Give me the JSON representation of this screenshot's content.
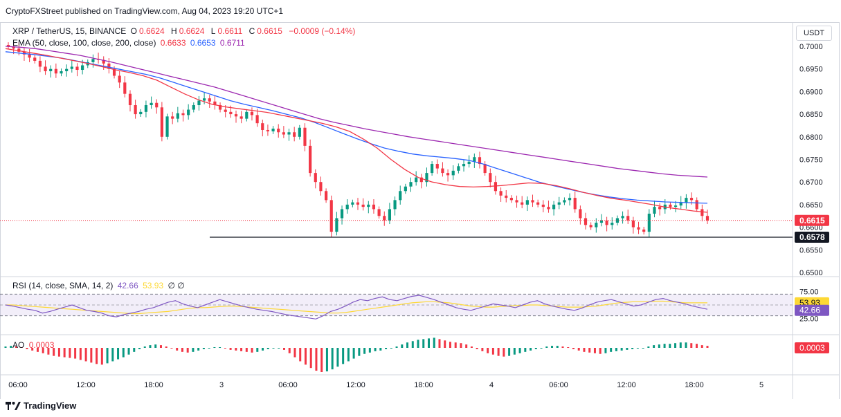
{
  "header": {
    "published": "CryptoFXStreet published on TradingView.com, Aug 04, 2023 19:20 UTC+1"
  },
  "legend": {
    "symbol": "XRP / TetherUS, 15, BINANCE",
    "o_label": "O",
    "o_val": "0.6624",
    "h_label": "H",
    "h_val": "0.6624",
    "l_label": "L",
    "l_val": "0.6611",
    "c_label": "C",
    "c_val": "0.6615",
    "change": "−0.0009 (−0.14%)",
    "ema_label": "EMA (50, close, 100, close, 200, close)",
    "ema50": "0.6633",
    "ema100": "0.6653",
    "ema200": "0.6711",
    "rsi_label": "RSI (14, close, SMA, 14, 2)",
    "rsi_val": "42.66",
    "rsi_sma": "53.93",
    "rsi_extra": "∅ ∅",
    "ao_label": "AO",
    "ao_val": "0.0003"
  },
  "currency_button": "USDT",
  "colors": {
    "up": "#089981",
    "down": "#f23645",
    "ema50": "#f23645",
    "ema100": "#2962ff",
    "ema200": "#9c27b0",
    "rsi": "#7e57c2",
    "rsi_sma": "#fdd835",
    "ao_up": "#089981",
    "ao_down": "#f23645"
  },
  "chart_data": {
    "type": "candlestick",
    "price_axis": {
      "ticks": [
        "0.7000",
        "0.6950",
        "0.6900",
        "0.6850",
        "0.6800",
        "0.6750",
        "0.6700",
        "0.6650",
        "0.6600",
        "0.6550",
        "0.6500"
      ],
      "range": [
        0.65,
        0.7
      ]
    },
    "time_axis": {
      "ticks": [
        "06:00",
        "12:00",
        "18:00",
        "3",
        "06:00",
        "12:00",
        "18:00",
        "4",
        "06:00",
        "12:00",
        "18:00",
        "5"
      ]
    },
    "last_price": {
      "value": 0.6615,
      "label": "0.6615"
    },
    "support_line": {
      "value": 0.6578,
      "label": "0.6578"
    },
    "close": [
      0.7,
      0.6995,
      0.6988,
      0.6982,
      0.6975,
      0.6968,
      0.6955,
      0.6945,
      0.695,
      0.694,
      0.6945,
      0.695,
      0.6955,
      0.6948,
      0.6958,
      0.6965,
      0.6972,
      0.697,
      0.6962,
      0.695,
      0.6935,
      0.692,
      0.6895,
      0.687,
      0.685,
      0.6855,
      0.687,
      0.6875,
      0.6865,
      0.68,
      0.6845,
      0.684,
      0.6852,
      0.6848,
      0.686,
      0.687,
      0.688,
      0.6885,
      0.6878,
      0.687,
      0.686,
      0.6855,
      0.685,
      0.6845,
      0.684,
      0.6855,
      0.6848,
      0.683,
      0.6815,
      0.6812,
      0.6818,
      0.681,
      0.6805,
      0.681,
      0.68,
      0.682,
      0.678,
      0.672,
      0.67,
      0.668,
      0.666,
      0.659,
      0.662,
      0.664,
      0.665,
      0.6655,
      0.665,
      0.6645,
      0.665,
      0.664,
      0.6625,
      0.6615,
      0.664,
      0.666,
      0.668,
      0.669,
      0.67,
      0.671,
      0.67,
      0.672,
      0.674,
      0.673,
      0.672,
      0.6715,
      0.6725,
      0.6735,
      0.674,
      0.6745,
      0.6755,
      0.674,
      0.672,
      0.67,
      0.668,
      0.667,
      0.6665,
      0.666,
      0.6655,
      0.665,
      0.666,
      0.6655,
      0.665,
      0.6645,
      0.664,
      0.665,
      0.6655,
      0.666,
      0.6665,
      0.664,
      0.662,
      0.6605,
      0.66,
      0.661,
      0.6615,
      0.6605,
      0.661,
      0.662,
      0.6625,
      0.6615,
      0.66,
      0.6595,
      0.659,
      0.663,
      0.6645,
      0.664,
      0.665,
      0.6645,
      0.6648,
      0.6655,
      0.6665,
      0.666,
      0.664,
      0.6625,
      0.6615
    ],
    "ema50": [
      0.6995,
      0.699,
      0.6985,
      0.698,
      0.6974,
      0.6968,
      0.6962,
      0.6955,
      0.6948,
      0.6942,
      0.6935,
      0.6925,
      0.691,
      0.6895,
      0.6882,
      0.6872,
      0.6866,
      0.6862,
      0.6858,
      0.6854,
      0.6848,
      0.6842,
      0.6836,
      0.683,
      0.6822,
      0.6812,
      0.6795,
      0.6775,
      0.675,
      0.6728,
      0.671,
      0.67,
      0.6694,
      0.669,
      0.6689,
      0.669,
      0.6692,
      0.6695,
      0.6698,
      0.6697,
      0.6692,
      0.6685,
      0.6677,
      0.667,
      0.6664,
      0.666,
      0.6655,
      0.665,
      0.6644,
      0.664,
      0.6636,
      0.6633
    ],
    "ema100": [
      0.6988,
      0.6985,
      0.6982,
      0.6978,
      0.6974,
      0.6968,
      0.6962,
      0.6956,
      0.695,
      0.6944,
      0.6938,
      0.693,
      0.692,
      0.691,
      0.69,
      0.689,
      0.688,
      0.6872,
      0.6865,
      0.6858,
      0.685,
      0.6842,
      0.6832,
      0.682,
      0.6808,
      0.6796,
      0.6785,
      0.6775,
      0.6768,
      0.6762,
      0.6758,
      0.6755,
      0.6752,
      0.6748,
      0.674,
      0.673,
      0.672,
      0.671,
      0.67,
      0.6692,
      0.6685,
      0.6678,
      0.6672,
      0.6667,
      0.6663,
      0.666,
      0.6658,
      0.6656,
      0.6655,
      0.6654,
      0.6653
    ],
    "ema200": [
      0.7,
      0.6998,
      0.6995,
      0.699,
      0.6985,
      0.698,
      0.6973,
      0.6966,
      0.6958,
      0.695,
      0.6942,
      0.6934,
      0.6926,
      0.6918,
      0.691,
      0.69,
      0.689,
      0.688,
      0.687,
      0.686,
      0.685,
      0.684,
      0.6832,
      0.6825,
      0.6818,
      0.6812,
      0.6806,
      0.68,
      0.6795,
      0.679,
      0.6785,
      0.678,
      0.6775,
      0.677,
      0.6765,
      0.676,
      0.6755,
      0.675,
      0.6745,
      0.674,
      0.6735,
      0.673,
      0.6726,
      0.6722,
      0.6718,
      0.6715,
      0.6713,
      0.6711
    ],
    "rsi_axis": {
      "ticks": [
        "75.00",
        "25.00"
      ],
      "range": [
        0,
        100
      ],
      "overbought": 70,
      "oversold": 30
    },
    "rsi": [
      50,
      48,
      45,
      42,
      40,
      35,
      38,
      42,
      46,
      50,
      45,
      40,
      38,
      35,
      30,
      28,
      32,
      35,
      38,
      42,
      45,
      50,
      55,
      58,
      52,
      48,
      45,
      50,
      55,
      60,
      56,
      52,
      48,
      45,
      42,
      40,
      38,
      35,
      32,
      30,
      28,
      26,
      24,
      30,
      38,
      42,
      48,
      55,
      60,
      58,
      62,
      65,
      60,
      58,
      62,
      66,
      68,
      64,
      60,
      55,
      50,
      45,
      42,
      40,
      44,
      48,
      52,
      50,
      48,
      45,
      50,
      55,
      58,
      52,
      48,
      45,
      42,
      40,
      44,
      50,
      55,
      58,
      60,
      56,
      52,
      48,
      50,
      55,
      60,
      62,
      58,
      55,
      52,
      48,
      45,
      42
    ],
    "rsi_sma": [
      50,
      50,
      49,
      48,
      47,
      46,
      45,
      44,
      43,
      42,
      41,
      40,
      39,
      38,
      37,
      36,
      35,
      34,
      34,
      35,
      36,
      37,
      38,
      40,
      42,
      44,
      45,
      45,
      46,
      47,
      48,
      48,
      47,
      46,
      45,
      44,
      43,
      42,
      41,
      40,
      39,
      38,
      37,
      36,
      35,
      35,
      36,
      38,
      40,
      42,
      44,
      46,
      48,
      50,
      52,
      54,
      55,
      56,
      56,
      55,
      54,
      52,
      50,
      48,
      47,
      46,
      46,
      47,
      48,
      49,
      49,
      50,
      50,
      49,
      48,
      47,
      46,
      46,
      46,
      47,
      48,
      50,
      52,
      54,
      55,
      56,
      56,
      56,
      57,
      57,
      56,
      55,
      54,
      54,
      54,
      54
    ],
    "ao_axis": {
      "zero": 0
    },
    "ao": [
      0.0002,
      0.0003,
      0.0002,
      0.0001,
      -0.0002,
      -0.0004,
      -0.0006,
      -0.0008,
      -0.001,
      -0.0012,
      -0.0013,
      -0.0014,
      -0.0015,
      -0.0016,
      -0.0018,
      -0.002,
      -0.0022,
      -0.0024,
      -0.0025,
      -0.0023,
      -0.002,
      -0.0017,
      -0.0014,
      -0.001,
      -0.0006,
      -0.0002,
      0.0002,
      0.0004,
      0.0005,
      0.0004,
      0.0002,
      -0.0001,
      -0.0004,
      -0.0006,
      -0.0007,
      -0.0006,
      -0.0004,
      -0.0002,
      0.0,
      0.0001,
      0.0001,
      -0.0001,
      -0.0003,
      -0.0004,
      -0.0005,
      -0.0006,
      -0.0007,
      -0.0006,
      -0.0004,
      -0.0002,
      -0.0001,
      0.0,
      -0.0003,
      -0.0008,
      -0.0014,
      -0.002,
      -0.0025,
      -0.003,
      -0.0034,
      -0.0036,
      -0.0035,
      -0.0032,
      -0.0028,
      -0.0024,
      -0.002,
      -0.0016,
      -0.0012,
      -0.0009,
      -0.0007,
      -0.0005,
      -0.0004,
      -0.0002,
      0.0,
      0.0002,
      0.0005,
      0.0008,
      0.001,
      0.0012,
      0.0013,
      0.0014,
      0.0015,
      0.0013,
      0.0011,
      0.0009,
      0.0008,
      0.0007,
      0.0005,
      0.0002,
      -0.0002,
      -0.0005,
      -0.0008,
      -0.001,
      -0.0012,
      -0.0013,
      -0.0012,
      -0.001,
      -0.0008,
      -0.0006,
      -0.0004,
      -0.0002,
      0.0,
      0.0002,
      0.0003,
      0.0003,
      0.0002,
      0.0001,
      -0.0002,
      -0.0004,
      -0.0006,
      -0.0007,
      -0.0008,
      -0.0009,
      -0.0008,
      -0.0006,
      -0.0005,
      -0.0004,
      -0.0003,
      -0.0002,
      -0.0001,
      0.0,
      0.0002,
      0.0004,
      0.0005,
      0.0006,
      0.0006,
      0.0007,
      0.0008,
      0.0008,
      0.0007,
      0.0006,
      0.0004,
      0.0003
    ]
  },
  "branding": {
    "logo_text": "TradingView"
  }
}
